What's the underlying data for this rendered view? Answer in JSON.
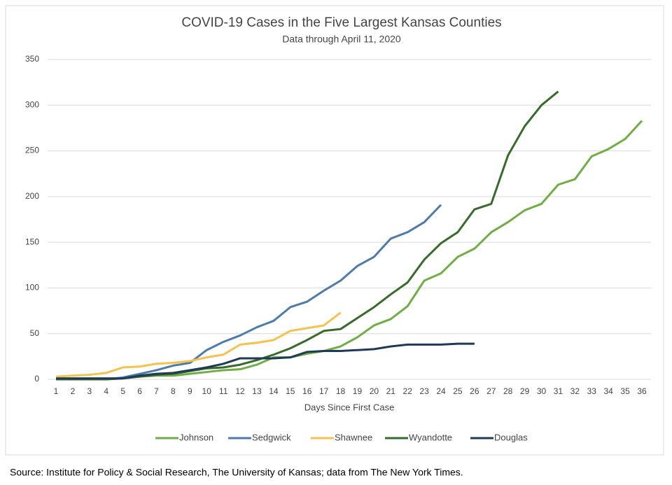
{
  "chart_data": {
    "type": "line",
    "title": "COVID-19 Cases in the Five Largest Kansas Counties",
    "subtitle": "Data through April 11, 2020",
    "x_label": "Days Since First Case",
    "source": "Source: Institute for Policy & Social Research, The University of Kansas; data from The New York Times.",
    "categories": [
      "1",
      "2",
      "3",
      "4",
      "5",
      "6",
      "7",
      "8",
      "9",
      "10",
      "11",
      "12",
      "13",
      "14",
      "15",
      "16",
      "17",
      "18",
      "19",
      "20",
      "21",
      "22",
      "23",
      "24",
      "25",
      "26",
      "27",
      "28",
      "29",
      "30",
      "31",
      "32",
      "33",
      "34",
      "35",
      "36"
    ],
    "ylim": [
      0,
      350
    ],
    "yticks": [
      0,
      50,
      100,
      150,
      200,
      250,
      300,
      350
    ],
    "grid": true,
    "legend": "bottom",
    "series": [
      {
        "name": "Johnson",
        "color": "#70ad47",
        "values": [
          1,
          1,
          1,
          1,
          1,
          3,
          4,
          4,
          6,
          8,
          10,
          11,
          16,
          24,
          24,
          28,
          31,
          36,
          46,
          59,
          66,
          80,
          108,
          116,
          134,
          143,
          161,
          172,
          185,
          192,
          213,
          219,
          244,
          252,
          263,
          283
        ]
      },
      {
        "name": "Sedgwick",
        "color": "#4e7bab",
        "values": [
          0,
          0,
          0,
          0,
          2,
          6,
          10,
          15,
          18,
          32,
          41,
          48,
          57,
          64,
          79,
          85,
          97,
          108,
          124,
          134,
          154,
          161,
          172,
          191,
          null,
          null,
          null,
          null,
          null,
          null,
          null,
          null,
          null,
          null,
          null,
          null
        ]
      },
      {
        "name": "Shawnee",
        "color": "#f3c24f",
        "values": [
          3,
          4,
          5,
          7,
          13,
          14,
          17,
          18,
          20,
          24,
          27,
          38,
          40,
          43,
          53,
          56,
          59,
          73,
          null,
          null,
          null,
          null,
          null,
          null,
          null,
          null,
          null,
          null,
          null,
          null,
          null,
          null,
          null,
          null,
          null,
          null
        ]
      },
      {
        "name": "Wyandotte",
        "color": "#386b2b",
        "values": [
          0,
          0,
          0,
          0,
          1,
          3,
          5,
          6,
          9,
          12,
          13,
          16,
          21,
          27,
          34,
          43,
          53,
          55,
          67,
          79,
          93,
          106,
          131,
          149,
          161,
          186,
          192,
          245,
          277,
          300,
          315,
          null,
          null,
          null,
          null,
          null
        ]
      },
      {
        "name": "Douglas",
        "color": "#1e3a56",
        "values": [
          1,
          1,
          1,
          1,
          1,
          4,
          6,
          7,
          10,
          13,
          17,
          23,
          23,
          23,
          24,
          30,
          31,
          31,
          32,
          33,
          36,
          38,
          38,
          38,
          39,
          39,
          null,
          null,
          null,
          null,
          null,
          null,
          null,
          null,
          null,
          null
        ]
      }
    ]
  }
}
